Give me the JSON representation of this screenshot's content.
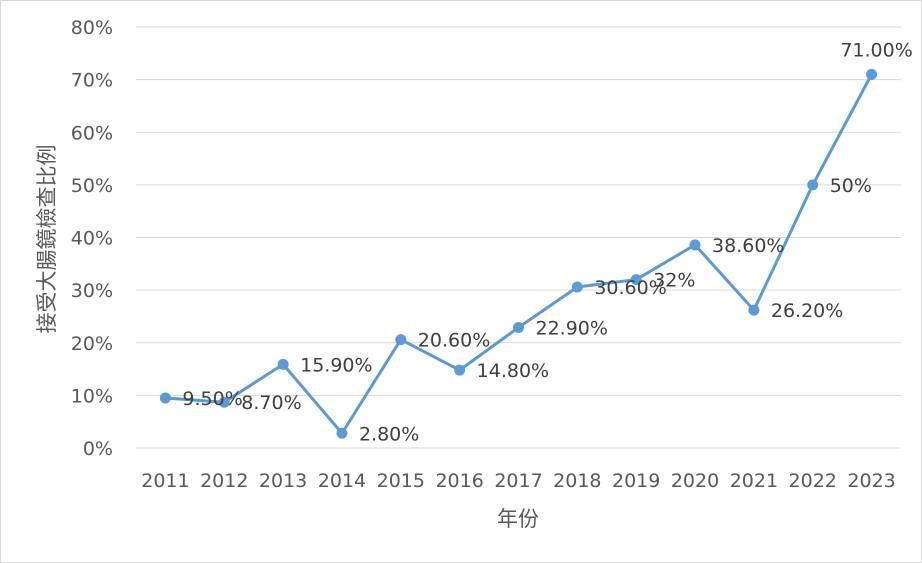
{
  "chart_data": {
    "type": "line",
    "xlabel": "年份",
    "ylabel": "接受大腸鏡檢查比例",
    "ylim": [
      0,
      80
    ],
    "y_ticks": [
      "0%",
      "10%",
      "20%",
      "30%",
      "40%",
      "50%",
      "60%",
      "70%",
      "80%"
    ],
    "grid": true,
    "legend": "none",
    "series_color": "#5b9bd5",
    "categories": [
      "2011",
      "2012",
      "2013",
      "2014",
      "2015",
      "2016",
      "2017",
      "2018",
      "2019",
      "2020",
      "2021",
      "2022",
      "2023"
    ],
    "series": [
      {
        "values": [
          9.5,
          8.7,
          15.9,
          2.8,
          20.6,
          14.8,
          22.9,
          30.6,
          32,
          38.6,
          26.2,
          50,
          71
        ],
        "labels": [
          "9.50%",
          "8.70%",
          "15.90%",
          "2.80%",
          "20.60%",
          "14.80%",
          "22.90%",
          "30.60%",
          "32%",
          "38.60%",
          "26.20%",
          "50%",
          "71.00%"
        ]
      }
    ]
  }
}
